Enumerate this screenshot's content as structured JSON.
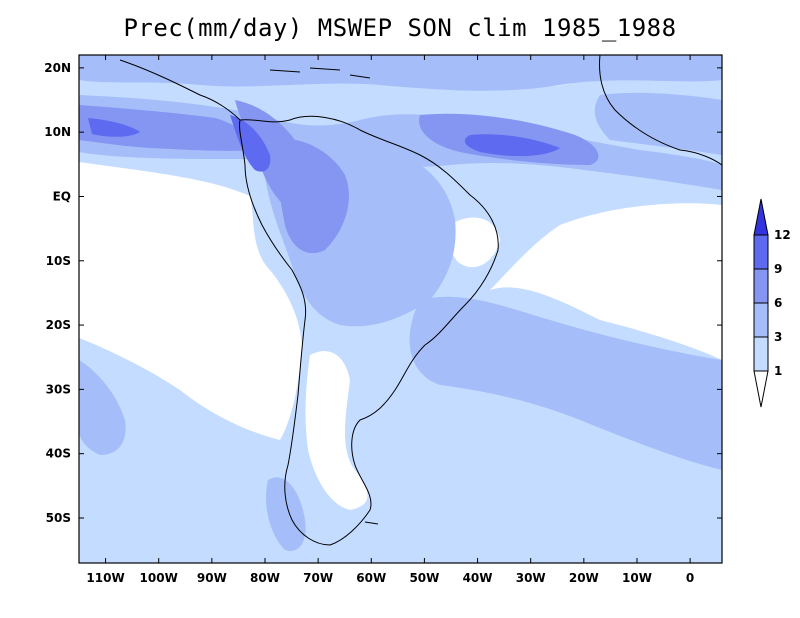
{
  "title": "Prec(mm/day) MSWEP SON clim 1985_1988",
  "map": {
    "lat_labels": [
      "20N",
      "10N",
      "EQ",
      "10S",
      "20S",
      "30S",
      "40S",
      "50S"
    ],
    "lat_values": [
      20,
      10,
      0,
      -10,
      -20,
      -30,
      -40,
      -50
    ],
    "lon_labels": [
      "110W",
      "100W",
      "90W",
      "80W",
      "70W",
      "60W",
      "50W",
      "40W",
      "30W",
      "20W",
      "10W",
      "0"
    ],
    "lon_values": [
      -110,
      -100,
      -90,
      -80,
      -70,
      -60,
      -50,
      -40,
      -30,
      -20,
      -10,
      0
    ],
    "extent": {
      "lon": [
        -115,
        6
      ],
      "lat": [
        -57,
        22
      ]
    }
  },
  "colorbar": {
    "levels": [
      "1",
      "3",
      "6",
      "9",
      "12"
    ],
    "level_values": [
      1,
      3,
      6,
      9,
      12
    ],
    "colors": [
      "#ffffff",
      "#c4dcff",
      "#a5bdf8",
      "#8496f2",
      "#5e6aef",
      "#3333e0"
    ]
  }
}
